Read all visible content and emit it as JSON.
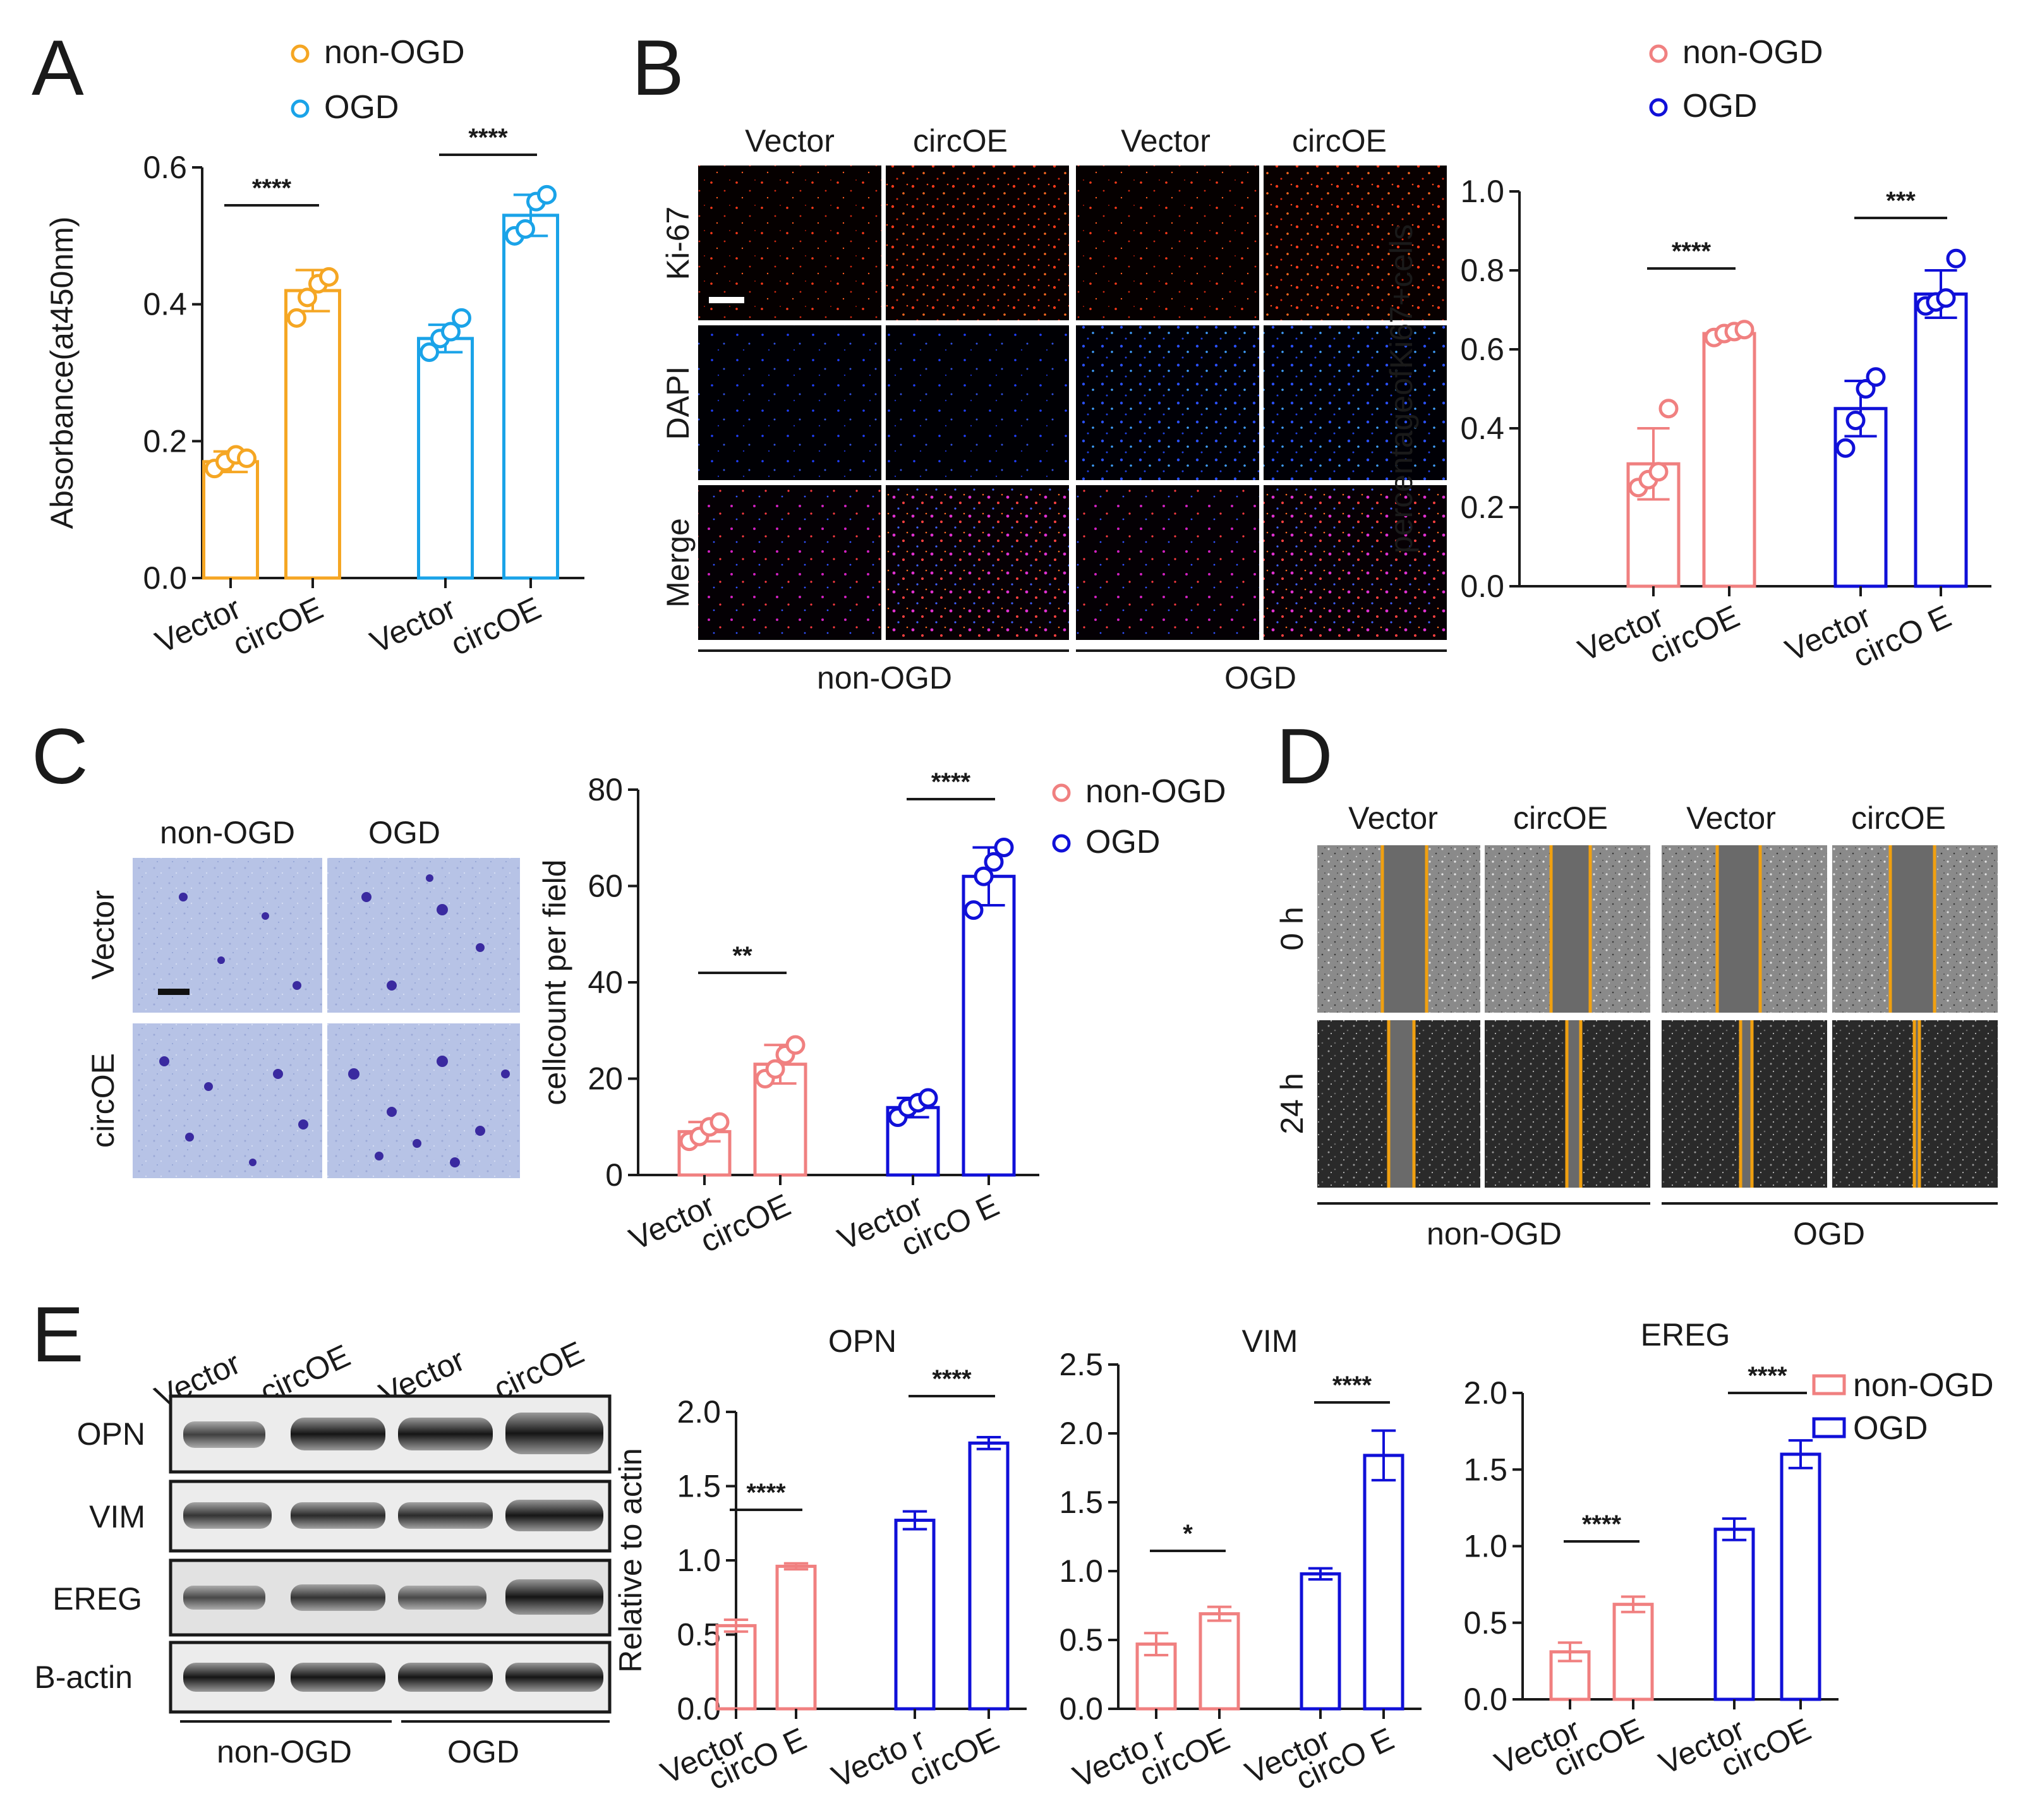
{
  "colors": {
    "orange": "#f5a623",
    "lightblue": "#1aa3e8",
    "pink": "#f08080",
    "blue": "#1010d8",
    "scratch_line": "#f0a010",
    "black": "#1a1a1a"
  },
  "panel_letters": [
    "A",
    "B",
    "C",
    "D",
    "E"
  ],
  "micrograph_B": {
    "col_labels": [
      "Vector",
      "circOE",
      "Vector",
      "circOE"
    ],
    "row_labels": [
      "Ki-67",
      "DAPI",
      "Merge"
    ],
    "group_labels": [
      "non-OGD",
      "OGD"
    ]
  },
  "micrograph_C": {
    "col_labels": [
      "non-OGD",
      "OGD"
    ],
    "row_labels": [
      "Vector",
      "circOE"
    ]
  },
  "micrograph_D": {
    "col_labels": [
      "Vector",
      "circOE",
      "Vector",
      "circOE"
    ],
    "row_labels": [
      "0 h",
      "24 h"
    ],
    "group_labels": [
      "non-OGD",
      "OGD"
    ]
  },
  "blot_E": {
    "lane_labels": [
      "Vector",
      "circOE",
      "Vector",
      "circOE"
    ],
    "row_labels": [
      "OPN",
      "VIM",
      "EREG",
      "B-actin"
    ],
    "group_labels": [
      "non-OGD",
      "OGD"
    ]
  },
  "chart_data": [
    {
      "id": "A",
      "type": "bar",
      "title": "",
      "ylabel": "Absorbance(at450nm)",
      "ylim": [
        0,
        0.6
      ],
      "yticks": [
        "0.0",
        "0.2",
        "0.4",
        "0.6"
      ],
      "yticks_values": [
        0,
        0.2,
        0.4,
        0.6
      ],
      "categories": [
        "Vector",
        "circOE",
        "Vector",
        "circOE"
      ],
      "groups": [
        "non-OGD",
        "non-OGD",
        "OGD",
        "OGD"
      ],
      "legend": [
        "non-OGD",
        "OGD"
      ],
      "legend_marker": "circle",
      "values": [
        0.17,
        0.42,
        0.35,
        0.53
      ],
      "errors": [
        0.015,
        0.03,
        0.02,
        0.03
      ],
      "points": [
        [
          0.16,
          0.17,
          0.18,
          0.175
        ],
        [
          0.38,
          0.41,
          0.43,
          0.44
        ],
        [
          0.33,
          0.35,
          0.36,
          0.38
        ],
        [
          0.5,
          0.51,
          0.55,
          0.56
        ]
      ],
      "significance": [
        {
          "from": 0,
          "to": 1,
          "label": "****"
        },
        {
          "from": 2,
          "to": 3,
          "label": "****"
        }
      ]
    },
    {
      "id": "B",
      "type": "bar",
      "title": "",
      "ylabel": "percentageofKi67+cells",
      "ylim": [
        0,
        1.0
      ],
      "yticks": [
        "0.0",
        "0.2",
        "0.4",
        "0.6",
        "0.8",
        "1.0"
      ],
      "yticks_values": [
        0,
        0.2,
        0.4,
        0.6,
        0.8,
        1.0
      ],
      "categories": [
        "Vector",
        "circOE",
        "Vector",
        "circO E"
      ],
      "groups": [
        "non-OGD",
        "non-OGD",
        "OGD",
        "OGD"
      ],
      "legend": [
        "non-OGD",
        "OGD"
      ],
      "legend_marker": "circle",
      "values": [
        0.31,
        0.64,
        0.45,
        0.74
      ],
      "errors": [
        0.09,
        0.01,
        0.07,
        0.06
      ],
      "points": [
        [
          0.25,
          0.27,
          0.29,
          0.45
        ],
        [
          0.63,
          0.64,
          0.645,
          0.65
        ],
        [
          0.35,
          0.42,
          0.5,
          0.53
        ],
        [
          0.71,
          0.72,
          0.73,
          0.83
        ]
      ],
      "significance": [
        {
          "from": 0,
          "to": 1,
          "label": "****"
        },
        {
          "from": 2,
          "to": 3,
          "label": "***"
        }
      ]
    },
    {
      "id": "C",
      "type": "bar",
      "title": "",
      "ylabel": "cellcount per field",
      "ylim": [
        0,
        80
      ],
      "yticks": [
        "0",
        "20",
        "40",
        "60",
        "80"
      ],
      "yticks_values": [
        0,
        20,
        40,
        60,
        80
      ],
      "categories": [
        "Vector",
        "circOE",
        "Vector",
        "circO E"
      ],
      "groups": [
        "non-OGD",
        "non-OGD",
        "OGD",
        "OGD"
      ],
      "legend": [
        "non-OGD",
        "OGD"
      ],
      "legend_marker": "circle",
      "values": [
        9,
        23,
        14,
        62
      ],
      "errors": [
        2,
        4,
        2,
        6
      ],
      "points": [
        [
          7,
          8,
          10,
          11
        ],
        [
          20,
          22,
          25,
          27
        ],
        [
          12,
          14,
          15,
          16
        ],
        [
          55,
          62,
          65,
          68
        ]
      ],
      "significance": [
        {
          "from": 0,
          "to": 1,
          "label": "**"
        },
        {
          "from": 2,
          "to": 3,
          "label": "****"
        }
      ]
    },
    {
      "id": "E-OPN",
      "type": "bar",
      "title": "OPN",
      "ylabel": "Relative  to actin",
      "ylim": [
        0,
        2.0
      ],
      "yticks": [
        "0.0",
        "0.5",
        "1.0",
        "1.5",
        "2.0"
      ],
      "yticks_values": [
        0,
        0.5,
        1.0,
        1.5,
        2.0
      ],
      "categories": [
        "Vector",
        "circO E",
        "Vecto r",
        "circOE"
      ],
      "groups": [
        "non-OGD",
        "non-OGD",
        "OGD",
        "OGD"
      ],
      "values": [
        0.56,
        0.96,
        1.27,
        1.79
      ],
      "errors": [
        0.04,
        0.02,
        0.06,
        0.04
      ],
      "significance": [
        {
          "from": 0,
          "to": 1,
          "label": "****"
        },
        {
          "from": 2,
          "to": 3,
          "label": "****"
        }
      ]
    },
    {
      "id": "E-VIM",
      "type": "bar",
      "title": "VIM",
      "ylabel": "",
      "ylim": [
        0,
        2.5
      ],
      "yticks": [
        "0.0",
        "0.5",
        "1.0",
        "1.5",
        "2.0",
        "2.5"
      ],
      "yticks_values": [
        0,
        0.5,
        1.0,
        1.5,
        2.0,
        2.5
      ],
      "categories": [
        "Vecto r",
        "circOE",
        "Vector",
        "circO E"
      ],
      "groups": [
        "non-OGD",
        "non-OGD",
        "OGD",
        "OGD"
      ],
      "values": [
        0.47,
        0.69,
        0.98,
        1.84
      ],
      "errors": [
        0.08,
        0.05,
        0.04,
        0.18
      ],
      "significance": [
        {
          "from": 0,
          "to": 1,
          "label": "*"
        },
        {
          "from": 2,
          "to": 3,
          "label": "****"
        }
      ]
    },
    {
      "id": "E-EREG",
      "type": "bar",
      "title": "EREG",
      "ylabel": "",
      "ylim": [
        0,
        2.0
      ],
      "yticks": [
        "0.0",
        "0.5",
        "1.0",
        "1.5",
        "2.0"
      ],
      "yticks_values": [
        0,
        0.5,
        1.0,
        1.5,
        2.0
      ],
      "categories": [
        "Vector",
        "circOE",
        "Vector",
        "circOE"
      ],
      "groups": [
        "non-OGD",
        "non-OGD",
        "OGD",
        "OGD"
      ],
      "legend": [
        "non-OGD",
        "OGD"
      ],
      "legend_marker": "square",
      "values": [
        0.31,
        0.62,
        1.11,
        1.6
      ],
      "errors": [
        0.06,
        0.05,
        0.07,
        0.09
      ],
      "significance": [
        {
          "from": 0,
          "to": 1,
          "label": "****"
        },
        {
          "from": 2,
          "to": 3,
          "label": "****"
        }
      ]
    }
  ]
}
